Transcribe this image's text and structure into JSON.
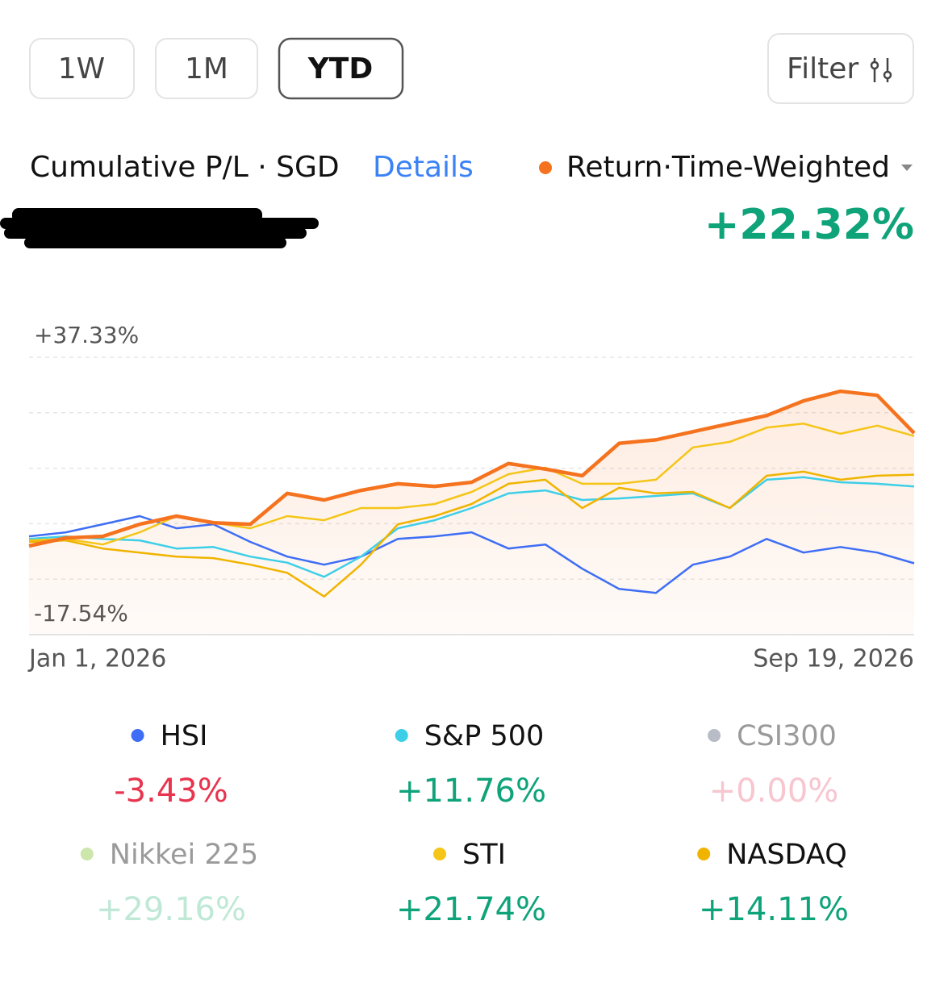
{
  "tabs": [
    "1W",
    "1M",
    "YTD"
  ],
  "filter": "Filter",
  "header": {
    "title": "Cumulative P/L · SGD",
    "details": "Details"
  },
  "chart_data": {
    "type": "line",
    "headline": "+22.32%",
    "ylim": [
      -17.54,
      37.33
    ],
    "yticks": [
      {
        "value": 37.33,
        "label": "+37.33%"
      },
      {
        "value": -17.54,
        "label": "-17.54%"
      }
    ],
    "xlabels": [
      "Jan 1, 2026",
      "Sep 19, 2026"
    ],
    "series": [
      {
        "name": "Return·Time-Weighted",
        "color": "#f5731f",
        "width": 4.5,
        "fill": true,
        "values": [
          0,
          1.6,
          1.9,
          4.3,
          5.9,
          4.6,
          4.3,
          10.4,
          9.1,
          11,
          12.3,
          11.8,
          12.6,
          16.3,
          15.2,
          13.9,
          20.3,
          21,
          22.6,
          24.2,
          25.8,
          28.7,
          30.6,
          29.8,
          22.32
        ]
      },
      {
        "name": "HSI",
        "color": "#3d6ef5",
        "change": "-3.43%",
        "change_color": "#e8344e",
        "width": 2.5,
        "values": [
          1.9,
          2.7,
          4.3,
          5.9,
          3.5,
          4.3,
          0.8,
          -2.1,
          -3.7,
          -2.1,
          1.4,
          1.9,
          2.7,
          -0.5,
          0.3,
          -4.5,
          -8.5,
          -9.3,
          -3.7,
          -2.1,
          1.4,
          -1.3,
          -0.2,
          -1.3,
          -3.43
        ]
      },
      {
        "name": "S&P 500",
        "color": "#3ecfe8",
        "change": "+11.76%",
        "change_color": "#0fa37a",
        "width": 2.5,
        "values": [
          1.4,
          1.9,
          1.4,
          1.1,
          -0.5,
          -0.2,
          -2.1,
          -3.3,
          -6.1,
          -2.1,
          3.5,
          5.1,
          7.5,
          10.4,
          11,
          9.1,
          9.4,
          9.9,
          10.4,
          7.5,
          13.1,
          13.6,
          12.6,
          12.3,
          11.76
        ]
      },
      {
        "name": "CSI300",
        "color": "#b8bcc6",
        "change": "+0.00%",
        "change_color": "#f7c6cf",
        "name_color": "#9a9a9a",
        "visible": false
      },
      {
        "name": "Nikkei 225",
        "color": "#cce6ab",
        "change": "+29.16%",
        "change_color": "#bfe8d6",
        "name_color": "#9a9a9a",
        "visible": false
      },
      {
        "name": "STI",
        "color": "#f5c518",
        "change": "+21.74%",
        "change_color": "#0fa37a",
        "width": 2.5,
        "values": [
          1.1,
          1.4,
          0.3,
          2.7,
          5.9,
          4.6,
          3.5,
          5.9,
          5.1,
          7.5,
          7.5,
          8.3,
          10.7,
          14.2,
          15.5,
          12.3,
          12.3,
          13.1,
          19.5,
          20.6,
          23.4,
          24.2,
          22.2,
          23.8,
          21.74
        ]
      },
      {
        "name": "NASDAQ",
        "color": "#f0b400",
        "change": "+14.11%",
        "change_color": "#0fa37a",
        "width": 2.5,
        "values": [
          0.8,
          1.1,
          -0.5,
          -1.3,
          -2.1,
          -2.4,
          -3.7,
          -5.3,
          -10,
          -3.7,
          4.3,
          5.9,
          8.3,
          12.3,
          13.1,
          7.5,
          11.5,
          10.4,
          10.7,
          7.5,
          13.9,
          14.7,
          13.1,
          13.9,
          14.11
        ]
      }
    ]
  }
}
